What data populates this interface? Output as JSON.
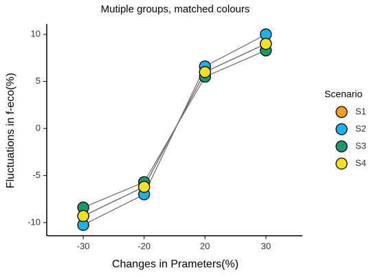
{
  "chart_data": {
    "type": "line",
    "title": "Mutiple groups, matched colours",
    "x_label": "Changes in Prameters(%)",
    "y_label": "Fluctuations in f-eco(%)",
    "categories": [
      "-30",
      "-20",
      "20",
      "30"
    ],
    "series": [
      {
        "name": "S1",
        "color": "#f39b1c",
        "values": [
          -9.3,
          -6.2,
          6.0,
          9.0
        ]
      },
      {
        "name": "S2",
        "color": "#1ab2e8",
        "values": [
          -10.25,
          -7.0,
          6.6,
          10.0
        ]
      },
      {
        "name": "S3",
        "color": "#1a9a6c",
        "values": [
          -8.4,
          -5.7,
          5.5,
          8.3
        ]
      },
      {
        "name": "S4",
        "color": "#f5e11e",
        "values": [
          -9.3,
          -6.2,
          6.0,
          9.0
        ]
      }
    ],
    "line_color": "#6b6b6b",
    "legend_title": "Scenario",
    "legend": "right",
    "ylim": [
      -11.4,
      11.1
    ],
    "yticks": [
      -10,
      -5,
      0,
      5,
      10
    ],
    "grid": false
  }
}
